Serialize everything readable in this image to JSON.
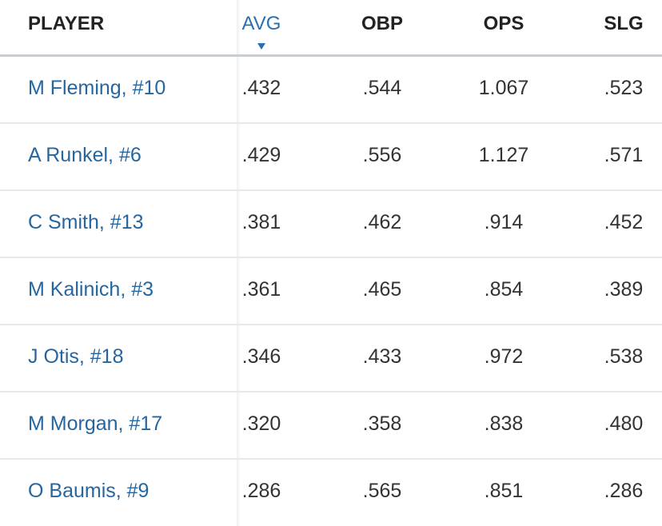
{
  "table": {
    "columns": [
      "PLAYER",
      "AVG",
      "OBP",
      "OPS",
      "SLG"
    ],
    "rows": [
      [
        "M Fleming, #10",
        ".432",
        ".544",
        "1.067",
        ".523"
      ],
      [
        "A Runkel, #6",
        ".429",
        ".556",
        "1.127",
        ".571"
      ],
      [
        "C Smith, #13",
        ".381",
        ".462",
        ".914",
        ".452"
      ],
      [
        "M Kalinich, #3",
        ".361",
        ".465",
        ".854",
        ".389"
      ],
      [
        "J Otis, #18",
        ".346",
        ".433",
        ".972",
        ".538"
      ],
      [
        "M Morgan, #17",
        ".320",
        ".358",
        ".838",
        ".480"
      ],
      [
        "O Baumis, #9",
        ".286",
        ".565",
        ".851",
        ".286"
      ]
    ]
  }
}
